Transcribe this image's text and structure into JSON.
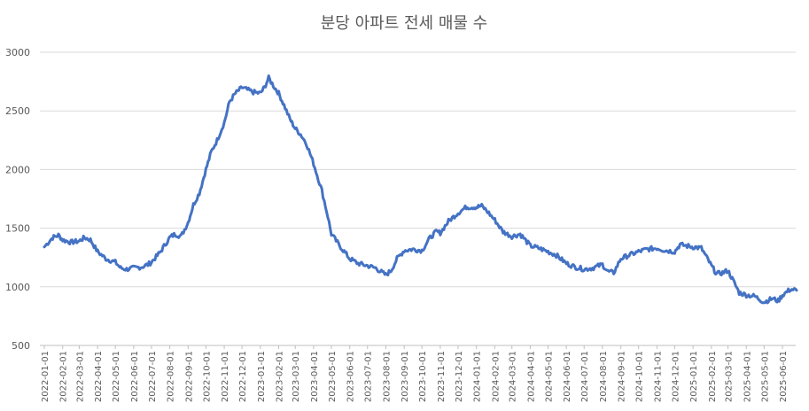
{
  "chart_data": {
    "type": "line",
    "title": "분당 아파트 전세 매물 수",
    "xlabel": "",
    "ylabel": "",
    "ylim": [
      500,
      3000
    ],
    "yticks": [
      500,
      1000,
      1500,
      2000,
      2500,
      3000
    ],
    "grid": true,
    "legend": "none",
    "x_ticks": [
      "2022-01-01",
      "2022-02-01",
      "2022-03-01",
      "2022-04-01",
      "2022-05-01",
      "2022-06-01",
      "2022-07-01",
      "2022-08-01",
      "2022-09-01",
      "2022-10-01",
      "2022-11-01",
      "2022-12-01",
      "2023-01-01",
      "2023-02-01",
      "2023-03-01",
      "2023-04-01",
      "2023-05-01",
      "2023-06-01",
      "2023-07-01",
      "2023-08-01",
      "2023-09-01",
      "2023-10-01",
      "2023-11-01",
      "2023-12-01",
      "2024-01-01",
      "2024-02-01",
      "2024-03-01",
      "2024-04-01",
      "2024-05-01",
      "2024-06-01",
      "2024-07-01",
      "2024-08-01",
      "2024-09-01",
      "2024-10-01",
      "2024-11-01",
      "2024-12-01",
      "2025-01-01",
      "2025-02-01",
      "2025-03-01",
      "2025-04-01",
      "2025-05-01",
      "2025-06-01"
    ],
    "series": [
      {
        "color": "#4472c4",
        "points": [
          [
            "2022-01-01",
            1340
          ],
          [
            "2022-01-15",
            1420
          ],
          [
            "2022-01-25",
            1440
          ],
          [
            "2022-02-01",
            1400
          ],
          [
            "2022-02-15",
            1380
          ],
          [
            "2022-03-01",
            1390
          ],
          [
            "2022-03-10",
            1420
          ],
          [
            "2022-03-20",
            1400
          ],
          [
            "2022-04-01",
            1300
          ],
          [
            "2022-04-15",
            1240
          ],
          [
            "2022-05-01",
            1210
          ],
          [
            "2022-05-10",
            1160
          ],
          [
            "2022-05-20",
            1150
          ],
          [
            "2022-06-01",
            1160
          ],
          [
            "2022-06-15",
            1170
          ],
          [
            "2022-06-25",
            1190
          ],
          [
            "2022-07-01",
            1210
          ],
          [
            "2022-07-15",
            1290
          ],
          [
            "2022-08-01",
            1420
          ],
          [
            "2022-08-10",
            1450
          ],
          [
            "2022-08-20",
            1430
          ],
          [
            "2022-09-01",
            1550
          ],
          [
            "2022-09-10",
            1700
          ],
          [
            "2022-09-20",
            1800
          ],
          [
            "2022-10-01",
            2000
          ],
          [
            "2022-10-10",
            2150
          ],
          [
            "2022-10-20",
            2250
          ],
          [
            "2022-11-01",
            2400
          ],
          [
            "2022-11-10",
            2580
          ],
          [
            "2022-11-20",
            2650
          ],
          [
            "2022-12-01",
            2700
          ],
          [
            "2022-12-10",
            2680
          ],
          [
            "2022-12-20",
            2660
          ],
          [
            "2023-01-01",
            2650
          ],
          [
            "2023-01-08",
            2700
          ],
          [
            "2023-01-15",
            2780
          ],
          [
            "2023-01-25",
            2700
          ],
          [
            "2023-02-01",
            2650
          ],
          [
            "2023-02-10",
            2550
          ],
          [
            "2023-02-20",
            2430
          ],
          [
            "2023-03-01",
            2350
          ],
          [
            "2023-03-10",
            2300
          ],
          [
            "2023-03-20",
            2220
          ],
          [
            "2023-04-01",
            2050
          ],
          [
            "2023-04-15",
            1820
          ],
          [
            "2023-04-25",
            1600
          ],
          [
            "2023-05-01",
            1450
          ],
          [
            "2023-05-15",
            1350
          ],
          [
            "2023-06-01",
            1240
          ],
          [
            "2023-06-15",
            1200
          ],
          [
            "2023-07-01",
            1180
          ],
          [
            "2023-07-15",
            1160
          ],
          [
            "2023-08-01",
            1100
          ],
          [
            "2023-08-10",
            1140
          ],
          [
            "2023-08-20",
            1240
          ],
          [
            "2023-09-01",
            1310
          ],
          [
            "2023-09-15",
            1320
          ],
          [
            "2023-10-01",
            1310
          ],
          [
            "2023-10-15",
            1420
          ],
          [
            "2023-10-25",
            1470
          ],
          [
            "2023-11-01",
            1460
          ],
          [
            "2023-11-15",
            1560
          ],
          [
            "2023-12-01",
            1630
          ],
          [
            "2023-12-15",
            1680
          ],
          [
            "2024-01-01",
            1680
          ],
          [
            "2024-01-10",
            1690
          ],
          [
            "2024-01-20",
            1640
          ],
          [
            "2024-02-01",
            1570
          ],
          [
            "2024-02-15",
            1470
          ],
          [
            "2024-03-01",
            1430
          ],
          [
            "2024-03-15",
            1450
          ],
          [
            "2024-04-01",
            1350
          ],
          [
            "2024-04-15",
            1330
          ],
          [
            "2024-05-01",
            1300
          ],
          [
            "2024-05-15",
            1270
          ],
          [
            "2024-06-01",
            1200
          ],
          [
            "2024-06-15",
            1170
          ],
          [
            "2024-07-01",
            1150
          ],
          [
            "2024-07-15",
            1160
          ],
          [
            "2024-08-01",
            1190
          ],
          [
            "2024-08-10",
            1130
          ],
          [
            "2024-08-20",
            1120
          ],
          [
            "2024-09-01",
            1240
          ],
          [
            "2024-09-15",
            1270
          ],
          [
            "2024-10-01",
            1300
          ],
          [
            "2024-10-15",
            1320
          ],
          [
            "2024-11-01",
            1330
          ],
          [
            "2024-11-15",
            1310
          ],
          [
            "2024-12-01",
            1300
          ],
          [
            "2024-12-10",
            1360
          ],
          [
            "2024-12-20",
            1350
          ],
          [
            "2025-01-01",
            1340
          ],
          [
            "2025-01-15",
            1330
          ],
          [
            "2025-02-01",
            1180
          ],
          [
            "2025-02-10",
            1110
          ],
          [
            "2025-02-20",
            1120
          ],
          [
            "2025-03-01",
            1140
          ],
          [
            "2025-03-10",
            1050
          ],
          [
            "2025-03-20",
            950
          ],
          [
            "2025-04-01",
            930
          ],
          [
            "2025-04-15",
            920
          ],
          [
            "2025-05-01",
            870
          ],
          [
            "2025-05-15",
            900
          ],
          [
            "2025-05-25",
            880
          ],
          [
            "2025-06-01",
            930
          ],
          [
            "2025-06-15",
            980
          ],
          [
            "2025-06-25",
            970
          ]
        ]
      }
    ]
  }
}
